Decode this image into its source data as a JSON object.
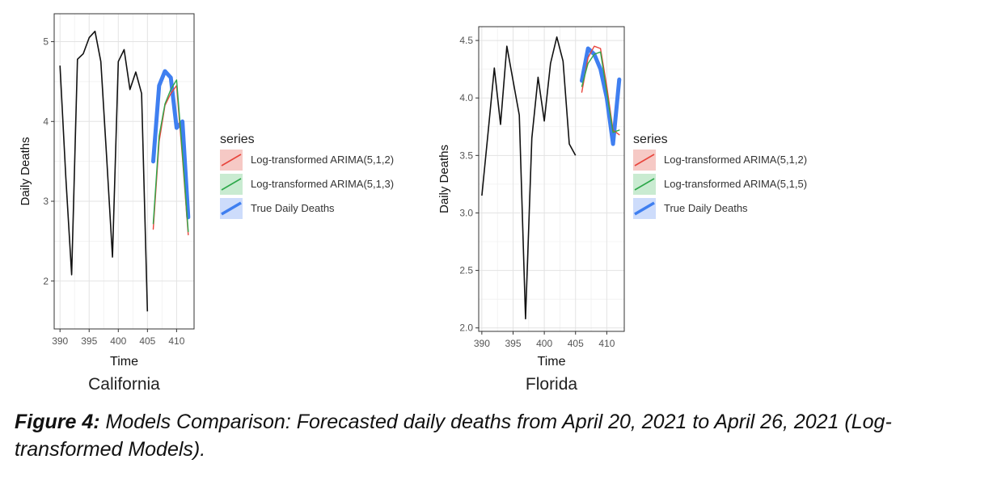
{
  "chart_data": [
    {
      "type": "line",
      "title": "California",
      "xlabel": "Time",
      "ylabel": "Daily Deaths",
      "xlim": [
        389,
        413
      ],
      "ylim": [
        1.4,
        5.35
      ],
      "x_ticks": [
        390,
        395,
        400,
        405,
        410
      ],
      "y_ticks": [
        2,
        3,
        4,
        5
      ],
      "grid": true,
      "legend_title": "series",
      "legend_position": "right",
      "history": {
        "x": [
          390,
          391,
          392,
          393,
          394,
          395,
          396,
          397,
          398,
          399,
          400,
          401,
          402,
          403,
          404,
          405
        ],
        "y": [
          4.7,
          3.3,
          2.08,
          4.78,
          4.85,
          5.05,
          5.13,
          4.75,
          3.55,
          2.3,
          4.75,
          4.9,
          4.4,
          4.62,
          4.35,
          1.62
        ]
      },
      "series": [
        {
          "name": "Log-transformed ARIMA(5,1,2)",
          "color": "#E8453C",
          "x": [
            406,
            407,
            408,
            409,
            410,
            411,
            412
          ],
          "y": [
            2.65,
            3.75,
            4.2,
            4.35,
            4.45,
            3.55,
            2.58
          ]
        },
        {
          "name": "Log-transformed ARIMA(5,1,3)",
          "color": "#2DA84A",
          "x": [
            406,
            407,
            408,
            409,
            410,
            411,
            412
          ],
          "y": [
            2.72,
            3.82,
            4.22,
            4.4,
            4.52,
            3.6,
            2.62
          ]
        },
        {
          "name": "True Daily Deaths",
          "color": "#3F7FF0",
          "x": [
            406,
            407,
            408,
            409,
            410,
            411,
            412
          ],
          "y": [
            3.5,
            4.45,
            4.63,
            4.55,
            3.92,
            4.0,
            2.8
          ]
        }
      ]
    },
    {
      "type": "line",
      "title": "Florida",
      "xlabel": "Time",
      "ylabel": "Daily Deaths",
      "xlim": [
        389.5,
        412.8
      ],
      "ylim": [
        1.97,
        4.62
      ],
      "x_ticks": [
        390,
        395,
        400,
        405,
        410
      ],
      "y_ticks": [
        2.0,
        2.5,
        3.0,
        3.5,
        4.0,
        4.5
      ],
      "grid": true,
      "legend_title": "series",
      "legend_position": "right",
      "history": {
        "x": [
          390,
          391,
          392,
          393,
          394,
          395,
          396,
          397,
          398,
          399,
          400,
          401,
          402,
          403,
          404,
          405
        ],
        "y": [
          3.15,
          3.7,
          4.26,
          3.77,
          4.45,
          4.15,
          3.85,
          2.08,
          3.65,
          4.18,
          3.8,
          4.3,
          4.53,
          4.32,
          3.6,
          3.5
        ]
      },
      "series": [
        {
          "name": "Log-transformed ARIMA(5,1,2)",
          "color": "#E8453C",
          "x": [
            406,
            407,
            408,
            409,
            410,
            411,
            412
          ],
          "y": [
            4.05,
            4.35,
            4.45,
            4.43,
            4.1,
            3.72,
            3.68
          ]
        },
        {
          "name": "Log-transformed ARIMA(5,1,5)",
          "color": "#2DA84A",
          "x": [
            406,
            407,
            408,
            409,
            410,
            411,
            412
          ],
          "y": [
            4.1,
            4.3,
            4.38,
            4.4,
            4.05,
            3.7,
            3.72
          ]
        },
        {
          "name": "True Daily Deaths",
          "color": "#3F7FF0",
          "x": [
            406,
            407,
            408,
            409,
            410,
            411,
            412
          ],
          "y": [
            4.15,
            4.43,
            4.38,
            4.25,
            4.0,
            3.6,
            4.16
          ]
        }
      ]
    }
  ],
  "caption": {
    "label": "Figure 4:",
    "text": " Models Comparison: Forecasted daily deaths from April 20, 2021 to April 26, 2021 (Log-transformed Models)."
  }
}
